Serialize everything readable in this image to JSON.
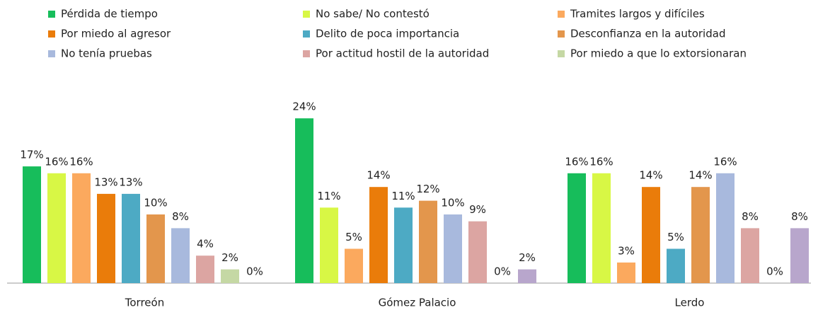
{
  "chart_data": {
    "type": "bar",
    "categories": [
      "Torreón",
      "Gómez Palacio",
      "Lerdo"
    ],
    "series": [
      {
        "name": "Pérdida de tiempo",
        "color": "#17bd5b",
        "values": [
          17,
          24,
          16
        ],
        "value_labels": [
          "17%",
          "24%",
          "16%"
        ]
      },
      {
        "name": "No sabe/ No contestó",
        "color": "#d8f745",
        "values": [
          16,
          11,
          16
        ],
        "value_labels": [
          "16%",
          "11%",
          "16%"
        ]
      },
      {
        "name": "Tramites largos y difíciles",
        "color": "#fba95e",
        "values": [
          16,
          5,
          3
        ],
        "value_labels": [
          "16%",
          "5%",
          "3%"
        ]
      },
      {
        "name": "Por miedo al agresor",
        "color": "#ea7c0a",
        "values": [
          13,
          14,
          14
        ],
        "value_labels": [
          "13%",
          "14%",
          "14%"
        ]
      },
      {
        "name": "Delito de poca importancia",
        "color": "#4daac4",
        "values": [
          13,
          11,
          5
        ],
        "value_labels": [
          "13%",
          "11%",
          "5%"
        ]
      },
      {
        "name": "Desconfianza en la autoridad",
        "color": "#e3964c",
        "values": [
          10,
          12,
          14
        ],
        "value_labels": [
          "10%",
          "12%",
          "14%"
        ]
      },
      {
        "name": "No tenía pruebas",
        "color": "#a8b9dd",
        "values": [
          8,
          10,
          16
        ],
        "value_labels": [
          "8%",
          "10%",
          "16%"
        ]
      },
      {
        "name": "Por actitud hostil de la autoridad",
        "color": "#dca5a2",
        "values": [
          4,
          9,
          8
        ],
        "value_labels": [
          "4%",
          "9%",
          "8%"
        ]
      },
      {
        "name": "Por miedo a que lo extorsionaran",
        "color": "#c5d8a4",
        "values": [
          2,
          0,
          0
        ],
        "value_labels": [
          "2%",
          "0%",
          "0%"
        ]
      },
      {
        "name": null,
        "color": "#b8a6cc",
        "values": [
          0,
          2,
          8
        ],
        "value_labels": [
          "0%",
          "2%",
          "8%"
        ]
      }
    ]
  }
}
